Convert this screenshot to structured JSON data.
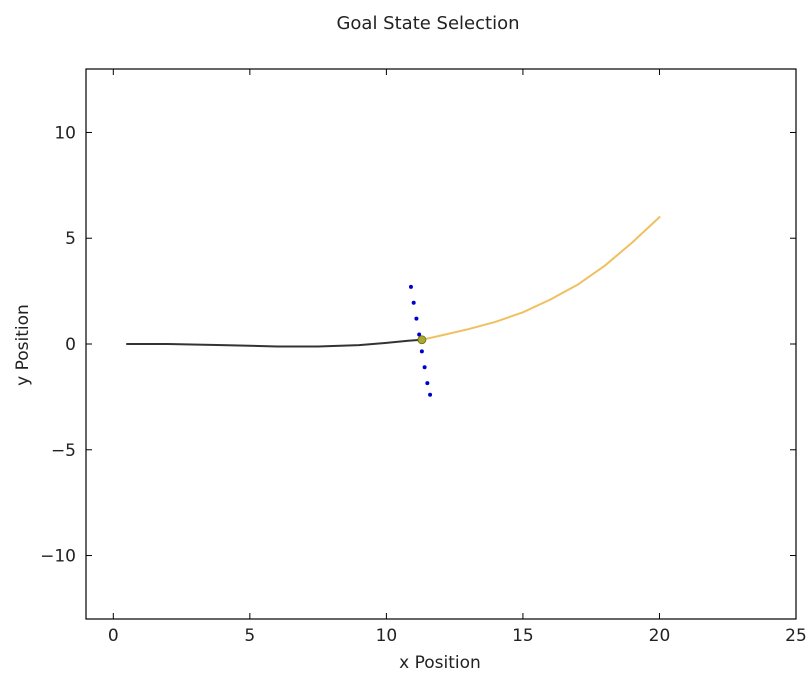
{
  "chart_data": {
    "type": "line",
    "title": "Goal State Selection",
    "xlabel": "x Position",
    "ylabel": "y Position",
    "xlim": [
      -1,
      25
    ],
    "ylim": [
      -13,
      13
    ],
    "grid": false,
    "xticks": [
      0,
      5,
      10,
      15,
      20,
      25
    ],
    "xtick_labels": [
      "0",
      "5",
      "10",
      "15",
      "20",
      "25"
    ],
    "yticks": [
      -10,
      -5,
      0,
      5,
      10
    ],
    "ytick_labels": [
      "−10",
      "−5",
      "0",
      "5",
      "10"
    ],
    "series": [
      {
        "role": "traveled-path",
        "style": "line",
        "color": "#333333",
        "x": [
          0.5,
          2,
          4,
          6,
          7.5,
          9,
          10,
          10.8,
          11.3
        ],
        "y": [
          0.0,
          0.0,
          -0.05,
          -0.12,
          -0.12,
          -0.05,
          0.05,
          0.15,
          0.2
        ]
      },
      {
        "role": "goal-lattice",
        "style": "dotted",
        "color": "#0000cc",
        "x": [
          10.9,
          11.0,
          11.1,
          11.2,
          11.3,
          11.4,
          11.5,
          11.6
        ],
        "y": [
          2.7,
          1.95,
          1.2,
          0.45,
          -0.35,
          -1.1,
          -1.85,
          -2.4
        ]
      },
      {
        "role": "planned-path",
        "style": "line",
        "color": "#f0c060",
        "x": [
          11.3,
          12,
          13,
          14,
          15,
          16,
          17,
          18,
          19,
          20
        ],
        "y": [
          0.2,
          0.4,
          0.7,
          1.05,
          1.5,
          2.1,
          2.8,
          3.7,
          4.8,
          6.0
        ]
      },
      {
        "role": "selected-goal",
        "style": "point",
        "color": "#a8a832",
        "x": [
          11.3
        ],
        "y": [
          0.2
        ]
      }
    ]
  }
}
